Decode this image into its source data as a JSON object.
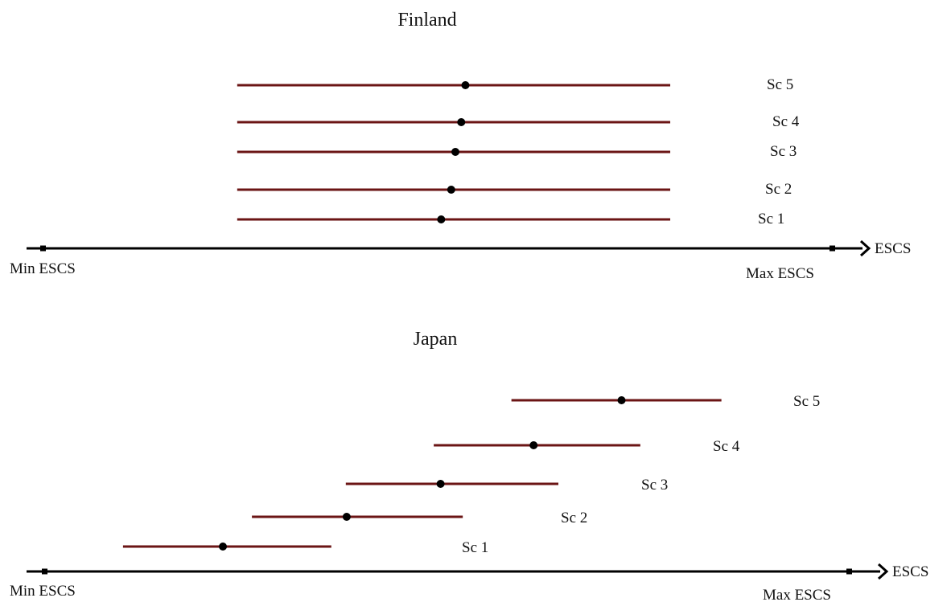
{
  "panels": [
    {
      "id": "finland",
      "title": "Finland",
      "axis": {
        "min_label": "Min ESCS",
        "max_label": "Max ESCS",
        "arrow_label": "ESCS"
      },
      "ranges": [
        {
          "label": "Sc 5",
          "start": 0.252,
          "end": 0.77,
          "marker": 0.525
        },
        {
          "label": "Sc 4",
          "start": 0.252,
          "end": 0.77,
          "marker": 0.52
        },
        {
          "label": "Sc 3",
          "start": 0.252,
          "end": 0.77,
          "marker": 0.513
        },
        {
          "label": "Sc 2",
          "start": 0.252,
          "end": 0.77,
          "marker": 0.508
        },
        {
          "label": "Sc 1",
          "start": 0.252,
          "end": 0.77,
          "marker": 0.496
        }
      ]
    },
    {
      "id": "japan",
      "title": "Japan",
      "axis": {
        "min_label": "Min ESCS",
        "max_label": "Max ESCS",
        "arrow_label": "ESCS"
      },
      "ranges": [
        {
          "label": "Sc 5",
          "start": 0.568,
          "end": 0.814,
          "marker": 0.697
        },
        {
          "label": "Sc 4",
          "start": 0.477,
          "end": 0.719,
          "marker": 0.594
        },
        {
          "label": "Sc 3",
          "start": 0.374,
          "end": 0.623,
          "marker": 0.485
        },
        {
          "label": "Sc 2",
          "start": 0.264,
          "end": 0.511,
          "marker": 0.375
        },
        {
          "label": "Sc 1",
          "start": 0.113,
          "end": 0.357,
          "marker": 0.23
        }
      ]
    }
  ],
  "colors": {
    "range_line": "#6b1515",
    "axis": "#000000",
    "marker": "#000000"
  }
}
